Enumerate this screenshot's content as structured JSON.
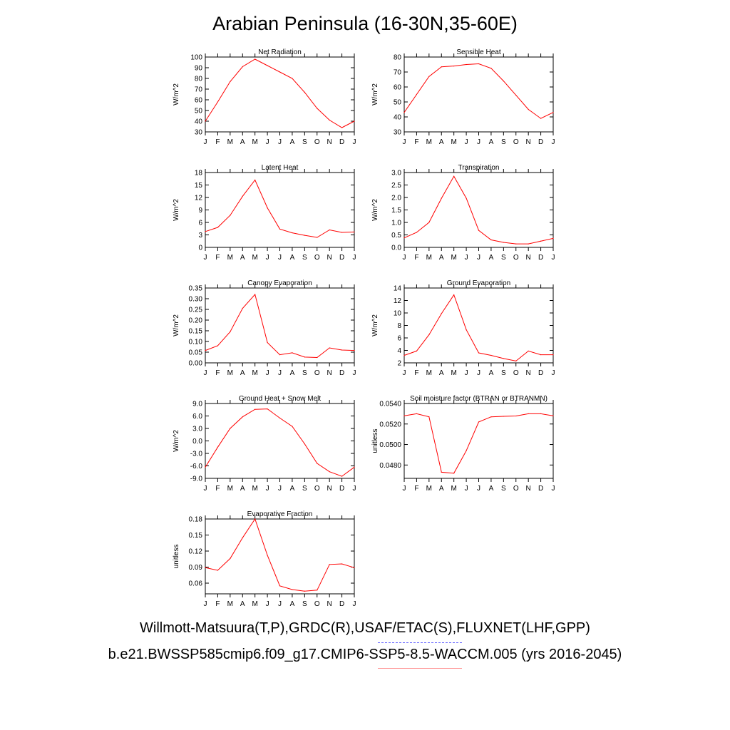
{
  "title": "Arabian Peninsula (16-30N,35-60E)",
  "month_labels": [
    "J",
    "F",
    "M",
    "A",
    "M",
    "J",
    "J",
    "A",
    "S",
    "O",
    "N",
    "D",
    "J"
  ],
  "colors": {
    "model": "#ff0000",
    "obs": "#6a6aff",
    "model_legend": "#ff9090"
  },
  "legend": {
    "obs": "Willmott-Matsuura(T,P),GRDC(R),USAF/ETAC(S),FLUXNET(LHF,GPP)",
    "model": "b.e21.BWSSP585cmip6.f09_g17.CMIP6-SSP5-8.5-WACCM.005 (yrs 2016-2045)"
  },
  "chart_data": [
    {
      "type": "line",
      "title": "Net Radiation",
      "ylabel": "W/m^2",
      "ylim": [
        30,
        100
      ],
      "yticks": [
        "30",
        "40",
        "50",
        "60",
        "70",
        "80",
        "90",
        "100"
      ],
      "x": [
        "J",
        "F",
        "M",
        "A",
        "M",
        "J",
        "J",
        "A",
        "S",
        "O",
        "N",
        "D",
        "J"
      ],
      "series": [
        {
          "values": [
            40,
            58,
            77,
            91,
            98,
            92,
            86,
            80,
            67,
            52,
            41,
            34,
            40
          ]
        }
      ]
    },
    {
      "type": "line",
      "title": "Sensible Heat",
      "ylabel": "W/m^2",
      "ylim": [
        30,
        80
      ],
      "yticks": [
        "30",
        "40",
        "50",
        "60",
        "70",
        "80"
      ],
      "x": [
        "J",
        "F",
        "M",
        "A",
        "M",
        "J",
        "J",
        "A",
        "S",
        "O",
        "N",
        "D",
        "J"
      ],
      "series": [
        {
          "values": [
            43,
            55,
            67,
            73.5,
            74,
            75,
            75.5,
            72.5,
            64,
            54.5,
            45,
            39,
            43
          ]
        }
      ]
    },
    {
      "type": "line",
      "title": "Latent Heat",
      "ylabel": "W/m^2",
      "ylim": [
        0,
        18
      ],
      "yticks": [
        "0",
        "3",
        "6",
        "9",
        "12",
        "15",
        "18"
      ],
      "x": [
        "J",
        "F",
        "M",
        "A",
        "M",
        "J",
        "J",
        "A",
        "S",
        "O",
        "N",
        "D",
        "J"
      ],
      "series": [
        {
          "values": [
            3.8,
            4.8,
            7.7,
            12.3,
            16.2,
            9.5,
            4.4,
            3.5,
            2.9,
            2.4,
            4.2,
            3.6,
            3.7
          ]
        }
      ]
    },
    {
      "type": "line",
      "title": "Transpiration",
      "ylabel": "W/m^2",
      "ylim": [
        0,
        3.0
      ],
      "yticks": [
        "0.0",
        "0.5",
        "1.0",
        "1.5",
        "2.0",
        "2.5",
        "3.0"
      ],
      "x": [
        "J",
        "F",
        "M",
        "A",
        "M",
        "J",
        "J",
        "A",
        "S",
        "O",
        "N",
        "D",
        "J"
      ],
      "series": [
        {
          "values": [
            0.38,
            0.6,
            1.0,
            1.97,
            2.85,
            1.97,
            0.68,
            0.3,
            0.2,
            0.14,
            0.14,
            0.25,
            0.36
          ]
        }
      ]
    },
    {
      "type": "line",
      "title": "Canopy Evaporation",
      "ylabel": "W/m^2",
      "ylim": [
        0,
        0.35
      ],
      "yticks": [
        "0.00",
        "0.05",
        "0.10",
        "0.15",
        "0.20",
        "0.25",
        "0.30",
        "0.35"
      ],
      "x": [
        "J",
        "F",
        "M",
        "A",
        "M",
        "J",
        "J",
        "A",
        "S",
        "O",
        "N",
        "D",
        "J"
      ],
      "series": [
        {
          "values": [
            0.058,
            0.08,
            0.145,
            0.255,
            0.32,
            0.095,
            0.038,
            0.047,
            0.027,
            0.025,
            0.07,
            0.06,
            0.058
          ]
        }
      ]
    },
    {
      "type": "line",
      "title": "Ground Evaporation",
      "ylabel": "W/m^2",
      "ylim": [
        2,
        14
      ],
      "yticks": [
        "2",
        "4",
        "6",
        "8",
        "10",
        "12",
        "14"
      ],
      "x": [
        "J",
        "F",
        "M",
        "A",
        "M",
        "J",
        "J",
        "A",
        "S",
        "O",
        "N",
        "D",
        "J"
      ],
      "series": [
        {
          "values": [
            3.2,
            3.9,
            6.5,
            9.9,
            12.9,
            7.3,
            3.6,
            3.2,
            2.7,
            2.3,
            3.9,
            3.3,
            3.3
          ]
        }
      ]
    },
    {
      "type": "line",
      "title": "Ground Heat + Snow Melt",
      "ylabel": "W/m^2",
      "ylim": [
        -9,
        9
      ],
      "yticks": [
        "-9.0",
        "-6.0",
        "-3.0",
        "0.0",
        "3.0",
        "6.0",
        "9.0"
      ],
      "x": [
        "J",
        "F",
        "M",
        "A",
        "M",
        "J",
        "J",
        "A",
        "S",
        "O",
        "N",
        "D",
        "J"
      ],
      "series": [
        {
          "values": [
            -6.3,
            -1.5,
            3.0,
            5.8,
            7.6,
            7.7,
            5.5,
            3.5,
            -0.7,
            -5.4,
            -7.4,
            -8.5,
            -6.3
          ]
        }
      ]
    },
    {
      "type": "line",
      "title": "Soil moisture factor (BTRAN or BTRANMN)",
      "ylabel": "unitless",
      "ylim": [
        0.0467,
        0.054
      ],
      "yticks": [
        "0.0480",
        "0.0500",
        "0.0520",
        "0.0540"
      ],
      "x": [
        "J",
        "F",
        "M",
        "A",
        "M",
        "J",
        "J",
        "A",
        "S",
        "O",
        "N",
        "D",
        "J"
      ],
      "series": [
        {
          "values": [
            0.0528,
            0.053,
            0.0527,
            0.0473,
            0.0472,
            0.0494,
            0.0522,
            0.0527,
            0.05275,
            0.05278,
            0.053,
            0.053,
            0.0528
          ]
        }
      ]
    },
    {
      "type": "line",
      "title": "Evaporative Fraction",
      "ylabel": "unitless",
      "ylim": [
        0.04,
        0.18
      ],
      "yticks": [
        "0.06",
        "0.09",
        "0.12",
        "0.15",
        "0.18"
      ],
      "x": [
        "J",
        "F",
        "M",
        "A",
        "M",
        "J",
        "J",
        "A",
        "S",
        "O",
        "N",
        "D",
        "J"
      ],
      "series": [
        {
          "values": [
            0.089,
            0.084,
            0.106,
            0.145,
            0.18,
            0.112,
            0.055,
            0.048,
            0.045,
            0.047,
            0.095,
            0.096,
            0.089
          ]
        }
      ]
    }
  ]
}
